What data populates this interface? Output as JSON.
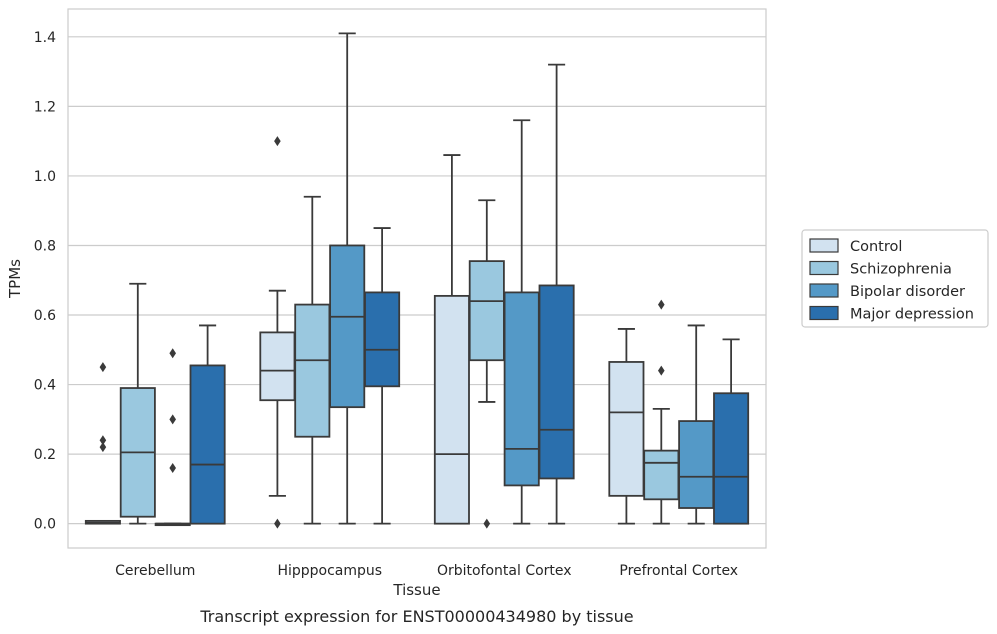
{
  "chart_data": {
    "type": "box",
    "xlabel": "Tissue",
    "ylabel": "TPMs",
    "caption": "Transcript expression for ENST00000434980 by tissue",
    "ylim": [
      -0.07,
      1.48
    ],
    "yticks": [
      "0.0",
      "0.2",
      "0.4",
      "0.6",
      "0.8",
      "1.0",
      "1.2",
      "1.4"
    ],
    "ytick_values": [
      0.0,
      0.2,
      0.4,
      0.6,
      0.8,
      1.0,
      1.2,
      1.4
    ],
    "categories": [
      "Cerebellum",
      "Hipppocampus",
      "Orbitofontal Cortex",
      "Prefrontal Cortex"
    ],
    "grid": "horizontal",
    "legend_position": "right",
    "series": [
      {
        "name": "Control",
        "color": "#d2e2f0",
        "boxes": [
          {
            "whislo": 0.0,
            "q1": 0.0,
            "med": 0.003,
            "q3": 0.008,
            "whishi": 0.008,
            "fliers": [
              0.45,
              0.24,
              0.22
            ]
          },
          {
            "whislo": 0.08,
            "q1": 0.355,
            "med": 0.44,
            "q3": 0.55,
            "whishi": 0.67,
            "fliers": [
              1.1,
              0.0
            ]
          },
          {
            "whislo": 0.0,
            "q1": 0.0,
            "med": 0.2,
            "q3": 0.655,
            "whishi": 1.06,
            "fliers": []
          },
          {
            "whislo": 0.0,
            "q1": 0.08,
            "med": 0.32,
            "q3": 0.465,
            "whishi": 0.56,
            "fliers": []
          }
        ]
      },
      {
        "name": "Schizophrenia",
        "color": "#9ac8df",
        "boxes": [
          {
            "whislo": 0.0,
            "q1": 0.02,
            "med": 0.205,
            "q3": 0.39,
            "whishi": 0.69,
            "fliers": []
          },
          {
            "whislo": 0.0,
            "q1": 0.25,
            "med": 0.47,
            "q3": 0.63,
            "whishi": 0.94,
            "fliers": []
          },
          {
            "whislo": 0.35,
            "q1": 0.47,
            "med": 0.64,
            "q3": 0.755,
            "whishi": 0.93,
            "fliers": [
              0.0
            ]
          },
          {
            "whislo": 0.0,
            "q1": 0.07,
            "med": 0.175,
            "q3": 0.21,
            "whishi": 0.33,
            "fliers": [
              0.63,
              0.44
            ]
          }
        ]
      },
      {
        "name": "Bipolar disorder",
        "color": "#5499c7",
        "boxes": [
          {
            "whislo": 0.0,
            "q1": 0.0,
            "med": 0.0,
            "q3": 0.0,
            "whishi": 0.0,
            "fliers": [
              0.49,
              0.3,
              0.16
            ]
          },
          {
            "whislo": 0.0,
            "q1": 0.335,
            "med": 0.595,
            "q3": 0.8,
            "whishi": 1.41,
            "fliers": []
          },
          {
            "whislo": 0.0,
            "q1": 0.11,
            "med": 0.215,
            "q3": 0.665,
            "whishi": 1.16,
            "fliers": []
          },
          {
            "whislo": 0.0,
            "q1": 0.045,
            "med": 0.135,
            "q3": 0.295,
            "whishi": 0.57,
            "fliers": []
          }
        ]
      },
      {
        "name": "Major depression",
        "color": "#2a6fad",
        "boxes": [
          {
            "whislo": 0.0,
            "q1": 0.0,
            "med": 0.17,
            "q3": 0.455,
            "whishi": 0.57,
            "fliers": []
          },
          {
            "whislo": 0.0,
            "q1": 0.395,
            "med": 0.5,
            "q3": 0.665,
            "whishi": 0.85,
            "fliers": []
          },
          {
            "whislo": 0.0,
            "q1": 0.13,
            "med": 0.27,
            "q3": 0.685,
            "whishi": 1.32,
            "fliers": []
          },
          {
            "whislo": 0.0,
            "q1": 0.0,
            "med": 0.135,
            "q3": 0.375,
            "whishi": 0.53,
            "fliers": []
          }
        ]
      }
    ]
  }
}
